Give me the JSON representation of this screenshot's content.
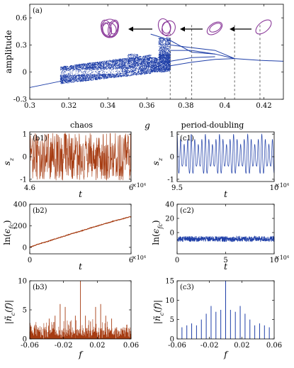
{
  "colors": {
    "blue": "#1f3fa8",
    "brown": "#a63c12",
    "axis": "#000000",
    "attractor": "#8b3a9a"
  },
  "section_titles": {
    "chaos": "chaos",
    "g": "g",
    "period_doubling": "period-doubling"
  },
  "chart_data": [
    {
      "id": "a",
      "type": "scatter",
      "panel_label": "(a)",
      "xlabel": "",
      "ylabel": "amplitude",
      "xlim": [
        0.3,
        0.43
      ],
      "ylim": [
        -0.3,
        0.75
      ],
      "xticks": [
        0.3,
        0.32,
        0.34,
        0.36,
        0.38,
        0.4,
        0.42
      ],
      "xtick_labels": [
        "0.3",
        "0.32",
        "0.34",
        "0.36",
        "0.38",
        "0.4",
        "0.42"
      ],
      "yticks": [
        -0.3,
        0,
        0.3,
        0.6
      ],
      "ytick_labels": [
        "-0.3",
        "0",
        "0.3",
        "0.6"
      ],
      "dashed_markers_x": [
        0.372,
        0.383,
        0.405,
        0.418
      ],
      "inset_arrows": 4,
      "description_series": {
        "name": "",
        "x_range": [
          0.3,
          0.43
        ]
      }
    },
    {
      "id": "b1",
      "type": "line",
      "panel_label": "(b1)",
      "xlabel": "t",
      "ylabel": "s_z",
      "xlim": [
        4.6,
        6
      ],
      "ylim": [
        -1.1,
        1.1
      ],
      "xticks": [
        4.6,
        6
      ],
      "xtick_labels": [
        "4.6",
        "6"
      ],
      "yticks": [
        -1,
        0,
        1
      ],
      "ytick_labels": [
        "-1",
        "0",
        "1"
      ],
      "x_multiplier": "×10⁴"
    },
    {
      "id": "c1",
      "type": "line",
      "panel_label": "(c1)",
      "xlabel": "t",
      "ylabel": "s_z",
      "xlim": [
        9.5,
        10
      ],
      "ylim": [
        -1.1,
        1.1
      ],
      "xticks": [
        9.5,
        10
      ],
      "xtick_labels": [
        "9.5",
        "10"
      ],
      "yticks": [
        -1,
        0,
        1
      ],
      "ytick_labels": [
        "-1",
        "0",
        "1"
      ],
      "x_multiplier": "×10⁴"
    },
    {
      "id": "b2",
      "type": "line",
      "panel_label": "(b2)",
      "xlabel": "t",
      "ylabel": "ln(ε_fc)",
      "xlim": [
        0,
        6
      ],
      "ylim": [
        -60,
        400
      ],
      "xticks": [
        0,
        6
      ],
      "xtick_labels": [
        "0",
        "6"
      ],
      "yticks": [
        0,
        200,
        400
      ],
      "ytick_labels": [
        "0",
        "200",
        "400"
      ],
      "x_multiplier": "×10⁴",
      "x": [
        0,
        0.5,
        1,
        1.5,
        2,
        2.5,
        3,
        3.5,
        4,
        4.5,
        5,
        5.5,
        6
      ],
      "y": [
        0,
        30,
        52,
        78,
        102,
        128,
        150,
        175,
        198,
        222,
        245,
        265,
        285
      ]
    },
    {
      "id": "c2",
      "type": "line",
      "panel_label": "(c2)",
      "xlabel": "t",
      "ylabel": "ln(ε_fc)",
      "xlim": [
        0,
        10
      ],
      "ylim": [
        -30,
        40
      ],
      "xticks": [
        0,
        5,
        10
      ],
      "xtick_labels": [
        "0",
        "5",
        "10"
      ],
      "yticks": [
        0,
        20,
        40
      ],
      "ytick_labels": [
        "0",
        "20",
        "40"
      ],
      "x_multiplier": "×10⁴",
      "band": [
        -13,
        -5
      ]
    },
    {
      "id": "b3",
      "type": "bar",
      "panel_label": "(b3)",
      "xlabel": "f",
      "ylabel": "|ñ_c(f)|",
      "xlim": [
        -0.06,
        0.06
      ],
      "ylim": [
        0,
        10
      ],
      "xticks": [
        -0.06,
        -0.02,
        0.02,
        0.06
      ],
      "xtick_labels": [
        "-0.06",
        "-0.02",
        "0.02",
        "0.06"
      ],
      "yticks": [
        0,
        5,
        10
      ],
      "ytick_labels": [
        "0",
        "5",
        "10"
      ],
      "x": [
        -0.05,
        -0.043,
        -0.037,
        -0.03,
        -0.024,
        -0.018,
        -0.012,
        -0.006,
        0,
        0.006,
        0.012,
        0.018,
        0.024,
        0.03,
        0.037,
        0.043,
        0.05
      ],
      "y": [
        1.5,
        2.0,
        3.5,
        4.0,
        6.0,
        5.5,
        3.0,
        4.0,
        10.0,
        4.0,
        3.0,
        5.5,
        6.0,
        4.0,
        3.5,
        2.0,
        1.5
      ]
    },
    {
      "id": "c3",
      "type": "bar",
      "panel_label": "(c3)",
      "xlabel": "f",
      "ylabel": "|ñ_c(f)|",
      "xlim": [
        -0.06,
        0.06
      ],
      "ylim": [
        0,
        15
      ],
      "xticks": [
        -0.06,
        -0.02,
        0.02,
        0.06
      ],
      "xtick_labels": [
        "-0.06",
        "-0.02",
        "0.02",
        "0.06"
      ],
      "yticks": [
        0,
        5,
        10,
        15
      ],
      "ytick_labels": [
        "0",
        "5",
        "10",
        "15"
      ],
      "x": [
        -0.054,
        -0.048,
        -0.042,
        -0.036,
        -0.03,
        -0.024,
        -0.018,
        -0.012,
        -0.006,
        0,
        0.006,
        0.012,
        0.018,
        0.024,
        0.03,
        0.036,
        0.042,
        0.048,
        0.054
      ],
      "y": [
        3.0,
        3.5,
        4.0,
        3.5,
        5.0,
        6.5,
        8.5,
        7.0,
        7.5,
        15.0,
        7.5,
        7.0,
        8.5,
        6.5,
        5.0,
        3.5,
        4.0,
        3.5,
        3.0
      ]
    }
  ]
}
